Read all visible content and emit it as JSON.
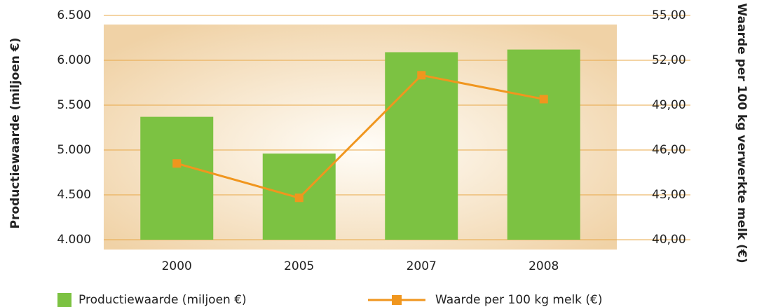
{
  "chart_data": {
    "type": "bar-line",
    "categories": [
      "2000",
      "2005",
      "2007",
      "2008"
    ],
    "series": [
      {
        "name": "Productiewaarde (miljoen €)",
        "type": "bar",
        "color": "#7cc242",
        "values": [
          5370,
          4960,
          6090,
          6120
        ]
      },
      {
        "name": "Waarde per 100 kg melk (€)",
        "type": "line",
        "axis": "y2",
        "color": "#f0961e",
        "values": [
          45.1,
          42.8,
          51.0,
          49.4
        ]
      }
    ],
    "ylabel": "Productiewaarde (miljoen €)",
    "y2label": "Waarde per 100 kg verwerkte melk (€)",
    "ylim": [
      4000,
      6500
    ],
    "yticks": [
      {
        "value": 4000,
        "label": "4.000"
      },
      {
        "value": 4500,
        "label": "4.500"
      },
      {
        "value": 5000,
        "label": "5.000"
      },
      {
        "value": 5500,
        "label": "5.500"
      },
      {
        "value": 6000,
        "label": "6.000"
      },
      {
        "value": 6500,
        "label": "6.500"
      }
    ],
    "y2lim": [
      40,
      55
    ],
    "y2ticks": [
      {
        "value": 40,
        "label": "40,00"
      },
      {
        "value": 43,
        "label": "43,00"
      },
      {
        "value": 46,
        "label": "46,00"
      },
      {
        "value": 49,
        "label": "49,00"
      },
      {
        "value": 52,
        "label": "52,00"
      },
      {
        "value": 55,
        "label": "55,00"
      }
    ],
    "grid": true,
    "legend": "bottom"
  }
}
